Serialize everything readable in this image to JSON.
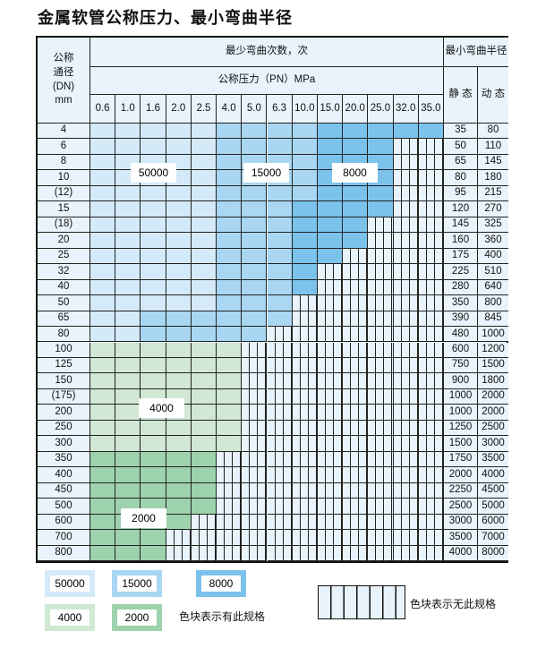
{
  "title": "金属软管公称压力、最小弯曲半径",
  "header": {
    "dn_label": "公称\n通径\n(DN)\nmm",
    "cycles_label": "最少弯曲次数，次",
    "pressure_label": "公称压力（PN）MPa",
    "radius_label": "最小弯曲半径",
    "static_label": "静 态",
    "dynamic_label": "动 态",
    "pressures": [
      "0.6",
      "1.0",
      "1.6",
      "2.0",
      "2.5",
      "4.0",
      "5.0",
      "6.3",
      "10.0",
      "15.0",
      "20.0",
      "25.0",
      "32.0",
      "35.0"
    ]
  },
  "rows": [
    {
      "dn": "4",
      "static": "35",
      "dynamic": "80",
      "cells": "LLLLLMMMMDDDDD"
    },
    {
      "dn": "6",
      "static": "50",
      "dynamic": "110",
      "cells": "LLLLLMMMMDDDNN"
    },
    {
      "dn": "8",
      "static": "65",
      "dynamic": "145",
      "cells": "LLLLLMMMMDDDNN"
    },
    {
      "dn": "10",
      "static": "80",
      "dynamic": "180",
      "cells": "LLLLLMMMMDDDNN"
    },
    {
      "dn": "(12)",
      "static": "95",
      "dynamic": "215",
      "cells": "LLLLLMMMMDDDNN"
    },
    {
      "dn": "15",
      "static": "120",
      "dynamic": "270",
      "cells": "LLLLLMMMDDDDNN"
    },
    {
      "dn": "(18)",
      "static": "145",
      "dynamic": "325",
      "cells": "LLLLLMMMDDDNNN"
    },
    {
      "dn": "20",
      "static": "160",
      "dynamic": "360",
      "cells": "LLLLLMMMDDDNNN"
    },
    {
      "dn": "25",
      "static": "175",
      "dynamic": "400",
      "cells": "LLLLLMMMDDNNNN"
    },
    {
      "dn": "32",
      "static": "225",
      "dynamic": "510",
      "cells": "LLLLLMMMDNNNNN"
    },
    {
      "dn": "40",
      "static": "280",
      "dynamic": "640",
      "cells": "LLLLLMMMDNNNNN"
    },
    {
      "dn": "50",
      "static": "350",
      "dynamic": "800",
      "cells": "LLLLLMMMNNNNNN"
    },
    {
      "dn": "65",
      "static": "390",
      "dynamic": "845",
      "cells": "LLMMMMMMNNNNNN"
    },
    {
      "dn": "80",
      "static": "480",
      "dynamic": "1000",
      "cells": "LLMMMMMNNNNNNN"
    },
    {
      "dn": "100",
      "static": "600",
      "dynamic": "1200",
      "cells": "GGGGGGNNNNNNNN"
    },
    {
      "dn": "125",
      "static": "750",
      "dynamic": "1500",
      "cells": "GGGGGGNNNNNNNN"
    },
    {
      "dn": "150",
      "static": "900",
      "dynamic": "1800",
      "cells": "GGGGGGNNNNNNNN"
    },
    {
      "dn": "(175)",
      "static": "1000",
      "dynamic": "2000",
      "cells": "GGGGGGNNNNNNNN"
    },
    {
      "dn": "200",
      "static": "1000",
      "dynamic": "2000",
      "cells": "GGGGGGNNNNNNNN"
    },
    {
      "dn": "250",
      "static": "1250",
      "dynamic": "2500",
      "cells": "GGGGGGNNNNNNNN"
    },
    {
      "dn": "300",
      "static": "1500",
      "dynamic": "3000",
      "cells": "GGGGGGNNNNNNNN"
    },
    {
      "dn": "350",
      "static": "1750",
      "dynamic": "3500",
      "cells": "HHHHHNNNNNNNNN"
    },
    {
      "dn": "400",
      "static": "2000",
      "dynamic": "4000",
      "cells": "HHHHHNNNNNNNNN"
    },
    {
      "dn": "450",
      "static": "2250",
      "dynamic": "4500",
      "cells": "HHHHHNNNNNNNNN"
    },
    {
      "dn": "500",
      "static": "2500",
      "dynamic": "5000",
      "cells": "HHHHHNNNNNNNNN"
    },
    {
      "dn": "600",
      "static": "3000",
      "dynamic": "6000",
      "cells": "HHHHNNNNNNNNNN"
    },
    {
      "dn": "700",
      "static": "3500",
      "dynamic": "7000",
      "cells": "HHHNNNNNNNNNNN"
    },
    {
      "dn": "800",
      "static": "4000",
      "dynamic": "8000",
      "cells": "HHHNNNNNNNNNNN"
    }
  ],
  "zone_labels": {
    "z50000": "50000",
    "z15000": "15000",
    "z8000": "8000",
    "z4000": "4000",
    "z2000": "2000"
  },
  "legend": {
    "items": [
      {
        "label": "50000",
        "color": "#d4eaf8"
      },
      {
        "label": "15000",
        "color": "#a9d7f3"
      },
      {
        "label": "8000",
        "color": "#7cc3ec"
      },
      {
        "label": "4000",
        "color": "#d0e8d4"
      },
      {
        "label": "2000",
        "color": "#9dd2ad"
      }
    ],
    "available_text": "色块表示有此规格",
    "unavailable_text": "色块表示无此规格"
  }
}
